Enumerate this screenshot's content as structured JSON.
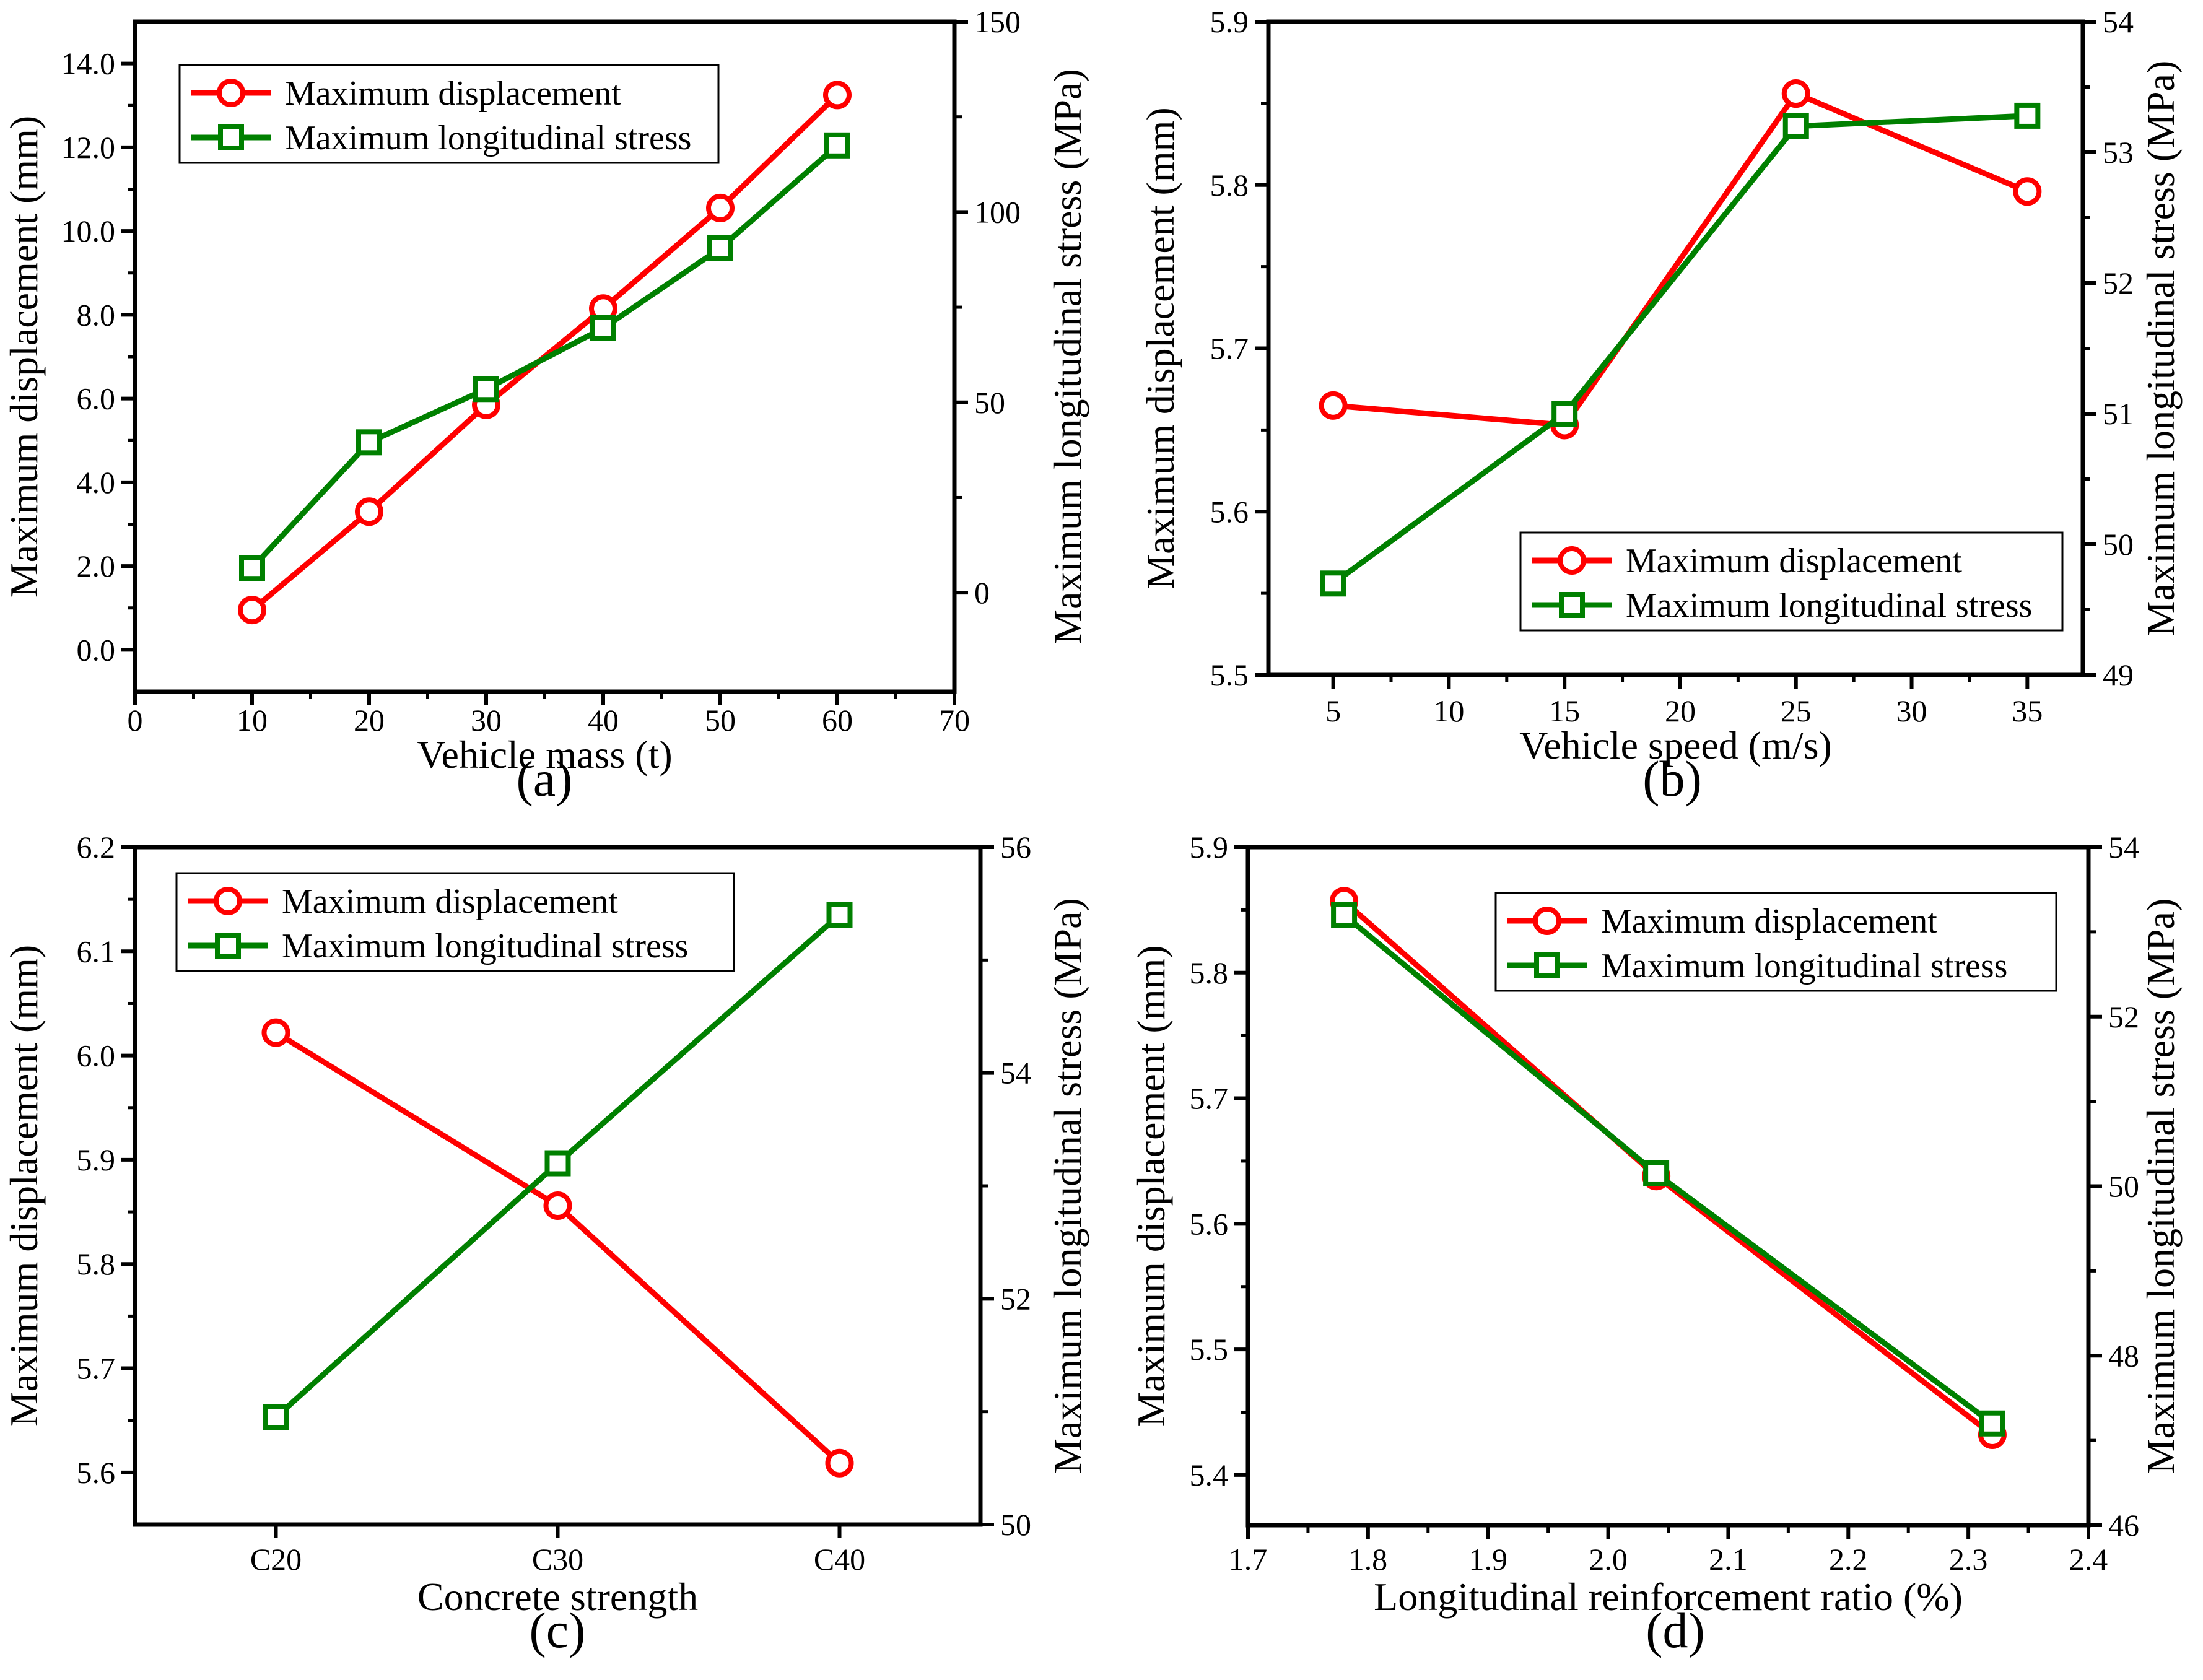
{
  "colors": {
    "displacement": "#ff0000",
    "stress": "#008000",
    "axis": "#000000",
    "background": "#ffffff"
  },
  "markers": {
    "displacement": "open-circle",
    "stress": "open-square"
  },
  "chart_data": [
    {
      "panel": "(a)",
      "type": "line",
      "xlabel": "Vehicle mass (t)",
      "ylabel_left": "Maximum displacement (mm)",
      "ylabel_right": "Maximum longitudinal stress (MPa)",
      "x_ticks": [
        "0",
        "10",
        "20",
        "30",
        "40",
        "50",
        "60",
        "70"
      ],
      "y_left_ticks": [
        "0.0",
        "2.0",
        "4.0",
        "6.0",
        "8.0",
        "10.0",
        "12.0",
        "14.0"
      ],
      "y_right_ticks": [
        "0",
        "50",
        "100",
        "150"
      ],
      "xlim": [
        0,
        70
      ],
      "ylim_left": [
        -1.0,
        15.0
      ],
      "ylim_right": [
        -26,
        150
      ],
      "legend_position": "top-left",
      "x": [
        10,
        20,
        30,
        40,
        50,
        60
      ],
      "series": [
        {
          "name": "Maximum displacement",
          "axis": "left",
          "values": [
            0.95,
            3.3,
            5.85,
            8.15,
            10.55,
            13.25
          ]
        },
        {
          "name": "Maximum longitudinal stress",
          "axis": "right",
          "values": [
            6.5,
            39.5,
            53.5,
            69.5,
            90.5,
            117.5
          ]
        }
      ]
    },
    {
      "panel": "(b)",
      "type": "line",
      "xlabel": "Vehicle speed (m/s)",
      "ylabel_left": "Maximum displacement (mm)",
      "ylabel_right": "Maximum longitudinal stress (MPa)",
      "x_ticks": [
        "5",
        "10",
        "15",
        "20",
        "25",
        "30",
        "35"
      ],
      "y_left_ticks": [
        "5.5",
        "5.6",
        "5.7",
        "5.8",
        "5.9"
      ],
      "y_right_ticks": [
        "49",
        "50",
        "51",
        "52",
        "53",
        "54"
      ],
      "xlim": [
        2.2,
        37.4
      ],
      "ylim_left": [
        5.5,
        5.9
      ],
      "ylim_right": [
        49,
        54
      ],
      "legend_position": "bottom-right",
      "x": [
        5,
        15,
        25,
        35
      ],
      "series": [
        {
          "name": "Maximum displacement",
          "axis": "left",
          "values": [
            5.665,
            5.653,
            5.856,
            5.796
          ]
        },
        {
          "name": "Maximum longitudinal stress",
          "axis": "right",
          "values": [
            49.7,
            51.0,
            53.2,
            53.28
          ]
        }
      ]
    },
    {
      "panel": "(c)",
      "type": "line",
      "xlabel": "Concrete strength",
      "ylabel_left": "Maximum displacement (mm)",
      "ylabel_right": "Maximum longitudinal stress (MPa)",
      "categories": [
        "C20",
        "C30",
        "C40"
      ],
      "y_left_ticks": [
        "5.6",
        "5.7",
        "5.8",
        "5.9",
        "6.0",
        "6.1",
        "6.2"
      ],
      "y_right_ticks": [
        "50",
        "52",
        "54",
        "56"
      ],
      "ylim_left": [
        5.55,
        6.2
      ],
      "ylim_right": [
        50,
        56
      ],
      "legend_position": "top-left",
      "series": [
        {
          "name": "Maximum displacement",
          "axis": "left",
          "values": [
            6.022,
            5.856,
            5.609
          ]
        },
        {
          "name": "Maximum longitudinal stress",
          "axis": "right",
          "values": [
            50.95,
            53.2,
            55.4
          ]
        }
      ]
    },
    {
      "panel": "(d)",
      "type": "line",
      "xlabel": "Longitudinal reinforcement ratio (%)",
      "ylabel_left": "Maximum displacement (mm)",
      "ylabel_right": "Maximum longitudinal stress (MPa)",
      "x_ticks": [
        "1.7",
        "1.8",
        "1.9",
        "2.0",
        "2.1",
        "2.2",
        "2.3",
        "2.4"
      ],
      "y_left_ticks": [
        "5.4",
        "5.5",
        "5.6",
        "5.7",
        "5.8",
        "5.9"
      ],
      "y_right_ticks": [
        "46",
        "48",
        "50",
        "52",
        "54"
      ],
      "xlim": [
        1.7,
        2.4
      ],
      "ylim_left": [
        5.36,
        5.9
      ],
      "ylim_right": [
        46,
        54
      ],
      "legend_position": "top-right",
      "x": [
        1.78,
        2.04,
        2.32
      ],
      "series": [
        {
          "name": "Maximum displacement",
          "axis": "left",
          "values": [
            5.857,
            5.638,
            5.432
          ]
        },
        {
          "name": "Maximum longitudinal stress",
          "axis": "right",
          "values": [
            53.2,
            50.15,
            47.2
          ]
        }
      ]
    }
  ]
}
